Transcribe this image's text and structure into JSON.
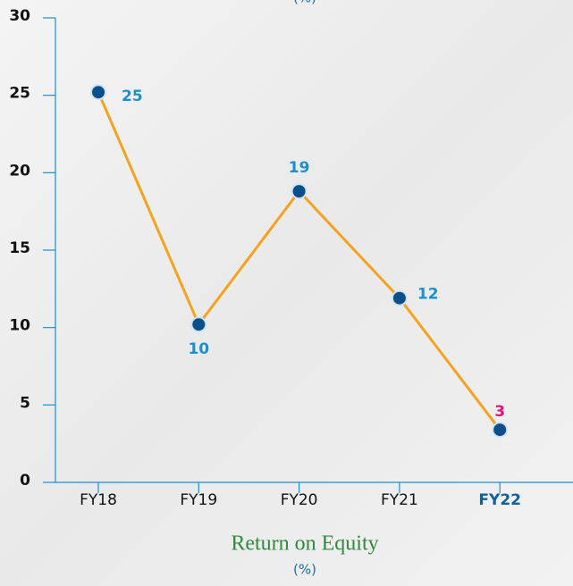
{
  "chart_data": {
    "type": "line",
    "header_fragment": "(%)",
    "title": "Return on Equity",
    "subtitle": "(%)",
    "categories": [
      "FY18",
      "FY19",
      "FY20",
      "FY21",
      "FY22"
    ],
    "series": [
      {
        "name": "Return on Equity",
        "color": "#f5a21f",
        "values": [
          25.2,
          10.2,
          18.8,
          11.9,
          3.4
        ],
        "value_labels": [
          "25",
          "10",
          "19",
          "12",
          "3"
        ]
      }
    ],
    "marker_color": "#0b4f8a",
    "label_color": "#1b8fcf",
    "highlight_index": 4,
    "highlight_color": "#e3127c",
    "highlight_category_color": "#0f5f9e",
    "ylim": [
      0,
      30
    ],
    "yticks": [
      0,
      5,
      10,
      15,
      20,
      25,
      30
    ]
  }
}
